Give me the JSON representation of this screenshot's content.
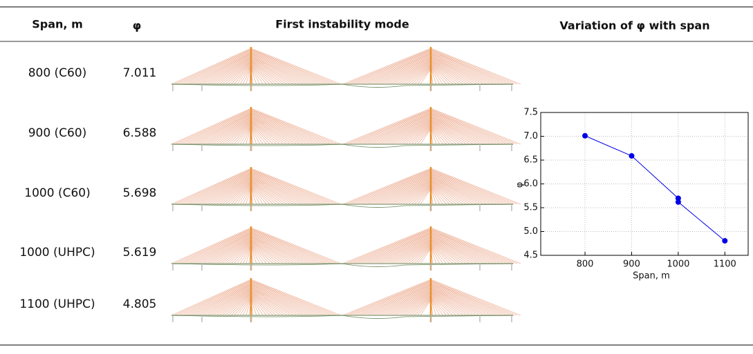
{
  "table": {
    "header": [
      "Span, m",
      "φ",
      "First instability mode",
      "Variation of φ with span"
    ],
    "rows": [
      {
        "span": "800 (C60)",
        "phi": 7.011
      },
      {
        "span": "900 (C60)",
        "phi": 6.588
      },
      {
        "span": "1000 (C60)",
        "phi": 5.698
      },
      {
        "span": "1000 (UHPC)",
        "phi": 5.619
      },
      {
        "span": "1100 (UHPC)",
        "phi": 4.805
      }
    ]
  },
  "chart": {
    "type": "line",
    "xlabel": "Span, m",
    "ylabel": "φ",
    "color": "#0000e6",
    "grid": true,
    "x": [
      800,
      900,
      1000,
      1000,
      1100
    ],
    "y": [
      7.011,
      6.588,
      5.698,
      5.619,
      4.805
    ],
    "xlim": [
      705,
      1150
    ],
    "xticks": [
      800,
      900,
      1000,
      1100
    ],
    "ylim": [
      4.5,
      7.5
    ],
    "yticks": [
      4.5,
      {
        "value": 5,
        "label": "5.0"
      },
      5.5,
      {
        "value": 6,
        "label": "6.0"
      },
      6.5,
      {
        "value": 7,
        "label": "7.0"
      },
      7.5
    ]
  }
}
